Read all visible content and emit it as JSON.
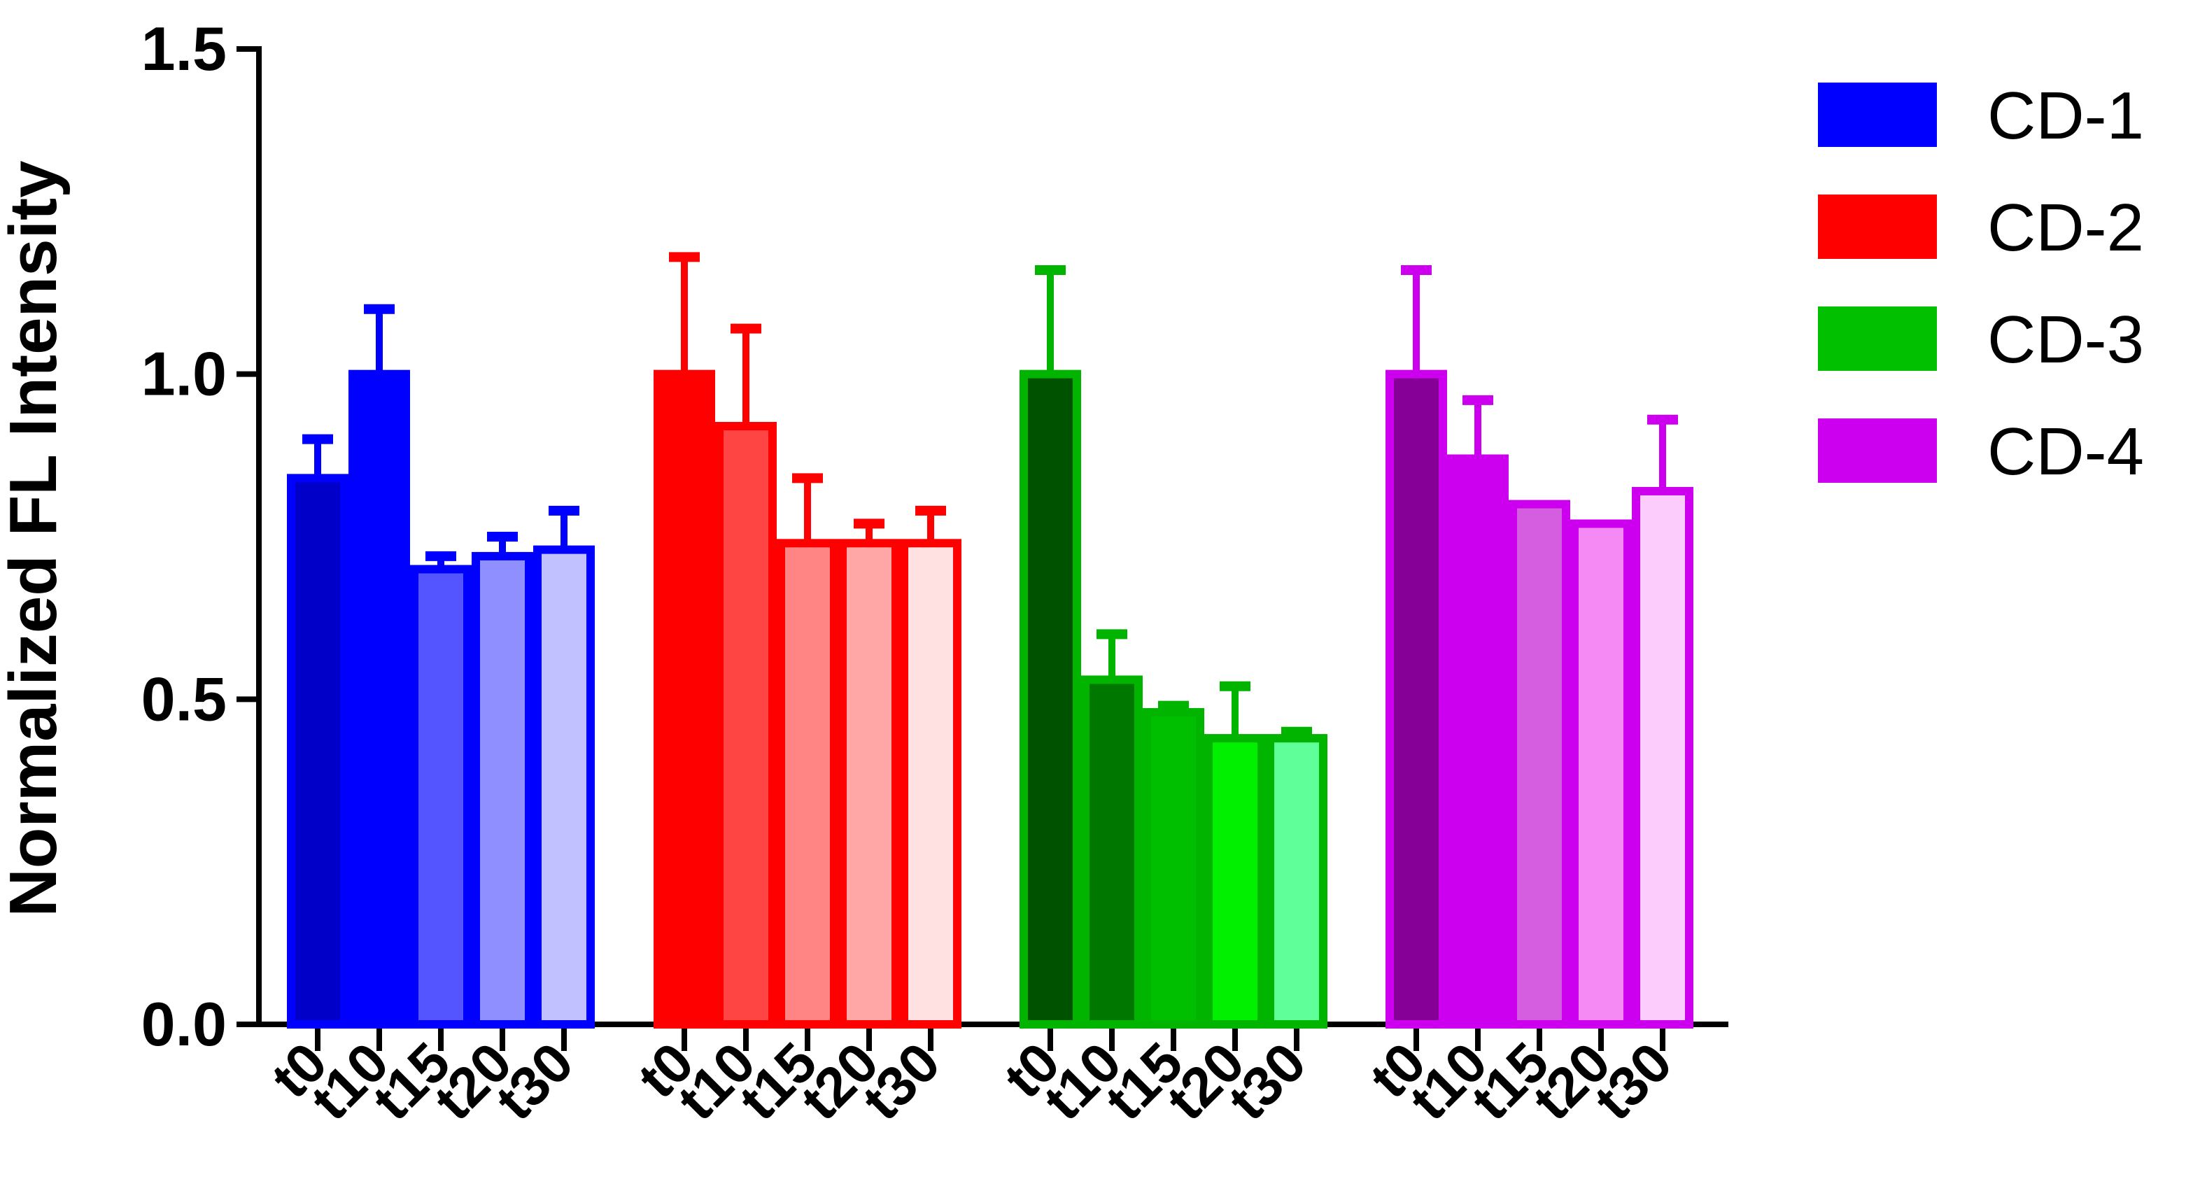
{
  "chart_data": {
    "type": "bar",
    "ylabel": "Normalized FL Intensity",
    "ylim": [
      0,
      1.5
    ],
    "yticks": [
      "0.0",
      "0.5",
      "1.0",
      "1.5"
    ],
    "categories": [
      "t0",
      "t10",
      "t15",
      "t20",
      "t30"
    ],
    "groups": [
      {
        "name": "CD-1",
        "border_color": "#0000ff",
        "fill_colors": [
          "#0000c8",
          "#0000ff",
          "#5555ff",
          "#8f8fff",
          "#c1c1ff"
        ],
        "values": [
          0.84,
          1.0,
          0.7,
          0.72,
          0.73
        ],
        "errors": [
          0.06,
          0.1,
          0.02,
          0.03,
          0.06
        ]
      },
      {
        "name": "CD-2",
        "border_color": "#ff0000",
        "fill_colors": [
          "#ff0000",
          "#ff4444",
          "#ff8484",
          "#ffa6a6",
          "#ffe1e1"
        ],
        "values": [
          1.0,
          0.92,
          0.74,
          0.74,
          0.74
        ],
        "errors": [
          0.18,
          0.15,
          0.1,
          0.03,
          0.05
        ]
      },
      {
        "name": "CD-3",
        "border_color": "#00b400",
        "fill_colors": [
          "#005200",
          "#007800",
          "#00be00",
          "#00f000",
          "#5fff9a"
        ],
        "values": [
          1.0,
          0.53,
          0.48,
          0.44,
          0.44
        ],
        "errors": [
          0.16,
          0.07,
          0.01,
          0.08,
          0.01
        ]
      },
      {
        "name": "CD-4",
        "border_color": "#cc00ee",
        "fill_colors": [
          "#860098",
          "#cc00ee",
          "#d55ee0",
          "#f58af5",
          "#fccdfc"
        ],
        "values": [
          1.0,
          0.87,
          0.8,
          0.77,
          0.82
        ],
        "errors": [
          0.16,
          0.09,
          0.0,
          0.0,
          0.11
        ]
      }
    ],
    "legend": {
      "placement": "top-right",
      "entries": [
        {
          "label": "CD-1",
          "color": "#0000ff"
        },
        {
          "label": "CD-2",
          "color": "#ff0000"
        },
        {
          "label": "CD-3",
          "color": "#00c000"
        },
        {
          "label": "CD-4",
          "color": "#cc00ee"
        }
      ]
    }
  }
}
